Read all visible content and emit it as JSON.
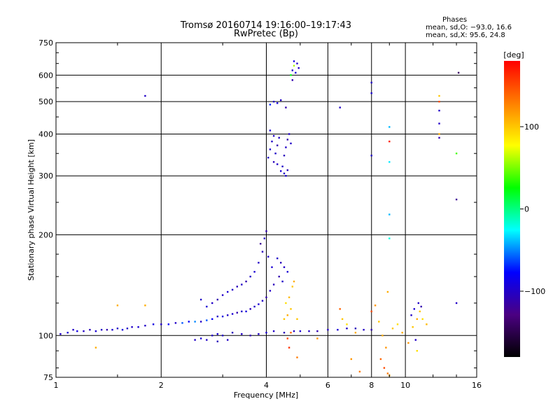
{
  "chart_data": {
    "type": "scatter",
    "title": "Tromsø 20160714 19:16:00–19:17:43",
    "subtitle": "RwPretec (Bp)",
    "xlabel": "Frequency [MHz]",
    "ylabel": "Stationary phase Virtual Height [km]",
    "x_scale": "log",
    "y_scale": "log",
    "xlim": [
      1,
      16
    ],
    "ylim": [
      75,
      750
    ],
    "x_ticks": [
      "1",
      "2",
      "4",
      "6",
      "8",
      "10",
      "16"
    ],
    "x_tick_values": [
      1,
      2,
      4,
      6,
      8,
      10,
      16
    ],
    "y_ticks": [
      "75",
      "100",
      "200",
      "300",
      "400",
      "500",
      "600",
      "750"
    ],
    "y_tick_values": [
      75,
      100,
      200,
      300,
      400,
      500,
      600,
      750
    ],
    "grid": true,
    "info": {
      "heading": "Phases",
      "line1": "mean, sd,O:  −93.0, 16.6",
      "line2": "mean, sd,X:  95.6, 24.8"
    },
    "colorbar": {
      "label": "[deg]",
      "range": [
        -180,
        180
      ],
      "ticks": [
        "100",
        "0",
        "−100"
      ],
      "tick_values": [
        100,
        0,
        -100
      ],
      "colors": [
        "#000000",
        "#4b0082",
        "#0000ff",
        "#00ffff",
        "#00ff00",
        "#ffff00",
        "#ff7f00",
        "#ff0000"
      ]
    },
    "series": [
      {
        "points": [
          [
            1.03,
            101,
            -100
          ],
          [
            1.08,
            102,
            -95
          ],
          [
            1.12,
            104,
            -100
          ],
          [
            1.15,
            103,
            -90
          ],
          [
            1.2,
            103,
            -100
          ],
          [
            1.25,
            104,
            -105
          ],
          [
            1.3,
            103,
            -95
          ],
          [
            1.35,
            104,
            -100
          ],
          [
            1.4,
            104,
            -110
          ],
          [
            1.45,
            104,
            -95
          ],
          [
            1.5,
            105,
            -100
          ],
          [
            1.55,
            104,
            -90
          ],
          [
            1.6,
            105,
            -100
          ],
          [
            1.65,
            106,
            -100
          ],
          [
            1.72,
            106,
            -95
          ],
          [
            1.8,
            107,
            -100
          ],
          [
            1.9,
            108,
            -90
          ],
          [
            2.0,
            108,
            -100
          ],
          [
            2.1,
            108,
            -80
          ],
          [
            2.2,
            109,
            -100
          ],
          [
            2.3,
            109,
            -60
          ],
          [
            2.4,
            110,
            -80
          ],
          [
            2.5,
            110,
            -50
          ],
          [
            2.6,
            110,
            -100
          ],
          [
            2.7,
            111,
            -60
          ],
          [
            2.8,
            112,
            -80
          ],
          [
            2.9,
            114,
            -100
          ],
          [
            3.0,
            114,
            -90
          ],
          [
            3.1,
            115,
            -100
          ],
          [
            3.2,
            116,
            -95
          ],
          [
            3.3,
            117,
            -110
          ],
          [
            3.4,
            118,
            -100
          ],
          [
            3.5,
            118,
            -90
          ],
          [
            3.6,
            120,
            -105
          ],
          [
            3.7,
            122,
            -100
          ],
          [
            3.8,
            124,
            -95
          ],
          [
            3.9,
            127,
            -100
          ],
          [
            4.0,
            130,
            -110
          ],
          [
            4.1,
            136,
            -100
          ],
          [
            4.2,
            142,
            -105
          ],
          [
            2.6,
            128,
            -100
          ],
          [
            2.7,
            122,
            -95
          ],
          [
            2.8,
            125,
            -100
          ],
          [
            2.9,
            128,
            -110
          ],
          [
            3.0,
            132,
            -100
          ],
          [
            3.1,
            135,
            -95
          ],
          [
            3.2,
            137,
            -100
          ],
          [
            3.3,
            140,
            -105
          ],
          [
            3.4,
            142,
            -100
          ],
          [
            3.5,
            145,
            -110
          ],
          [
            3.6,
            150,
            -100
          ],
          [
            3.7,
            155,
            -95
          ],
          [
            3.8,
            165,
            -100
          ],
          [
            3.9,
            178,
            -105
          ],
          [
            3.95,
            195,
            -100
          ],
          [
            4.0,
            205,
            -110
          ],
          [
            3.85,
            188,
            -120
          ],
          [
            4.05,
            172,
            -100
          ],
          [
            4.15,
            160,
            -95
          ],
          [
            4.3,
            170,
            -100
          ],
          [
            4.4,
            165,
            -105
          ],
          [
            4.5,
            160,
            -100
          ],
          [
            4.35,
            150,
            -110
          ],
          [
            4.45,
            145,
            -100
          ],
          [
            4.6,
            155,
            -95
          ],
          [
            2.8,
            100,
            -100
          ],
          [
            2.9,
            101,
            -95
          ],
          [
            3.0,
            100,
            -100
          ],
          [
            3.2,
            102,
            -105
          ],
          [
            3.4,
            101,
            -100
          ],
          [
            3.6,
            100,
            -110
          ],
          [
            3.8,
            101,
            -100
          ],
          [
            4.0,
            102,
            -95
          ],
          [
            4.2,
            103,
            -100
          ],
          [
            4.5,
            102,
            -105
          ],
          [
            4.8,
            103,
            -100
          ],
          [
            5.0,
            103,
            -95
          ],
          [
            5.3,
            103,
            -100
          ],
          [
            5.6,
            103,
            -110
          ],
          [
            6.0,
            104,
            -100
          ],
          [
            6.4,
            104,
            -95
          ],
          [
            6.8,
            105,
            -100
          ],
          [
            7.2,
            105,
            -105
          ],
          [
            7.6,
            104,
            -100
          ],
          [
            8.0,
            104,
            -110
          ],
          [
            2.5,
            97,
            -100
          ],
          [
            2.6,
            98,
            -95
          ],
          [
            2.7,
            97,
            -100
          ],
          [
            2.9,
            96,
            -105
          ],
          [
            3.1,
            97,
            -100
          ],
          [
            4.05,
            340,
            -100
          ],
          [
            4.1,
            360,
            -95
          ],
          [
            4.15,
            380,
            -100
          ],
          [
            4.2,
            330,
            -105
          ],
          [
            4.25,
            350,
            -100
          ],
          [
            4.3,
            370,
            -110
          ],
          [
            4.35,
            390,
            -100
          ],
          [
            4.4,
            310,
            -95
          ],
          [
            4.45,
            320,
            -100
          ],
          [
            4.5,
            345,
            -105
          ],
          [
            4.55,
            365,
            -100
          ],
          [
            4.6,
            385,
            -110
          ],
          [
            4.65,
            400,
            -100
          ],
          [
            4.1,
            410,
            -95
          ],
          [
            4.2,
            395,
            -100
          ],
          [
            4.5,
            305,
            -100
          ],
          [
            4.55,
            300,
            -95
          ],
          [
            4.6,
            312,
            -105
          ],
          [
            4.3,
            325,
            -100
          ],
          [
            4.7,
            375,
            -100
          ],
          [
            4.1,
            490,
            -70
          ],
          [
            4.2,
            500,
            -100
          ],
          [
            4.3,
            495,
            -90
          ],
          [
            4.4,
            505,
            -100
          ],
          [
            4.55,
            480,
            -110
          ],
          [
            4.7,
            600,
            20
          ],
          [
            4.75,
            620,
            -100
          ],
          [
            4.8,
            640,
            60
          ],
          [
            4.85,
            610,
            -95
          ],
          [
            4.9,
            650,
            -100
          ],
          [
            4.75,
            580,
            -110
          ],
          [
            4.8,
            660,
            -90
          ],
          [
            4.95,
            630,
            -100
          ],
          [
            4.5,
            112,
            100
          ],
          [
            4.6,
            115,
            110
          ],
          [
            4.7,
            120,
            100
          ],
          [
            4.55,
            125,
            90
          ],
          [
            4.65,
            130,
            105
          ],
          [
            4.75,
            140,
            100
          ],
          [
            4.8,
            145,
            110
          ],
          [
            4.9,
            112,
            100
          ],
          [
            4.7,
            102,
            140
          ],
          [
            4.6,
            98,
            150
          ],
          [
            4.65,
            92,
            160
          ],
          [
            4.9,
            86,
            130
          ],
          [
            5.6,
            98,
            120
          ],
          [
            6.5,
            120,
            140
          ],
          [
            6.6,
            112,
            100
          ],
          [
            6.8,
            108,
            90
          ],
          [
            7.2,
            102,
            110
          ],
          [
            7.0,
            85,
            120
          ],
          [
            7.4,
            78,
            130
          ],
          [
            8.0,
            118,
            150
          ],
          [
            8.2,
            123,
            120
          ],
          [
            8.4,
            110,
            100
          ],
          [
            8.6,
            100,
            110
          ],
          [
            8.8,
            92,
            120
          ],
          [
            8.5,
            85,
            140
          ],
          [
            8.7,
            80,
            150
          ],
          [
            8.9,
            77,
            130
          ],
          [
            9.0,
            76,
            110
          ],
          [
            9.2,
            105,
            100
          ],
          [
            9.5,
            108,
            90
          ],
          [
            9.8,
            102,
            110
          ],
          [
            10.2,
            95,
            120
          ],
          [
            10.5,
            106,
            100
          ],
          [
            10.8,
            112,
            110
          ],
          [
            11.0,
            118,
            100
          ],
          [
            11.2,
            112,
            90
          ],
          [
            11.5,
            108,
            105
          ],
          [
            10.4,
            115,
            -100
          ],
          [
            10.6,
            120,
            -95
          ],
          [
            10.9,
            125,
            -100
          ],
          [
            11.1,
            122,
            -110
          ],
          [
            10.7,
            97,
            -100
          ],
          [
            10.8,
            90,
            90
          ],
          [
            8.0,
            570,
            -100
          ],
          [
            8.0,
            530,
            -95
          ],
          [
            8.0,
            345,
            -100
          ],
          [
            9.0,
            380,
            170
          ],
          [
            9.0,
            420,
            -40
          ],
          [
            9.0,
            330,
            -30
          ],
          [
            9.0,
            230,
            -40
          ],
          [
            9.0,
            195,
            -20
          ],
          [
            8.9,
            135,
            110
          ],
          [
            12.5,
            520,
            100
          ],
          [
            12.5,
            500,
            150
          ],
          [
            12.5,
            470,
            -100
          ],
          [
            12.5,
            430,
            -100
          ],
          [
            12.5,
            400,
            110
          ],
          [
            12.5,
            390,
            -110
          ],
          [
            14.0,
            350,
            40
          ],
          [
            14.2,
            610,
            -140
          ],
          [
            14.0,
            255,
            -120
          ],
          [
            14.0,
            125,
            -100
          ],
          [
            6.5,
            480,
            -100
          ],
          [
            1.8,
            520,
            -100
          ],
          [
            1.5,
            123,
            110
          ],
          [
            1.8,
            123,
            110
          ],
          [
            1.3,
            92,
            110
          ]
        ]
      }
    ]
  }
}
